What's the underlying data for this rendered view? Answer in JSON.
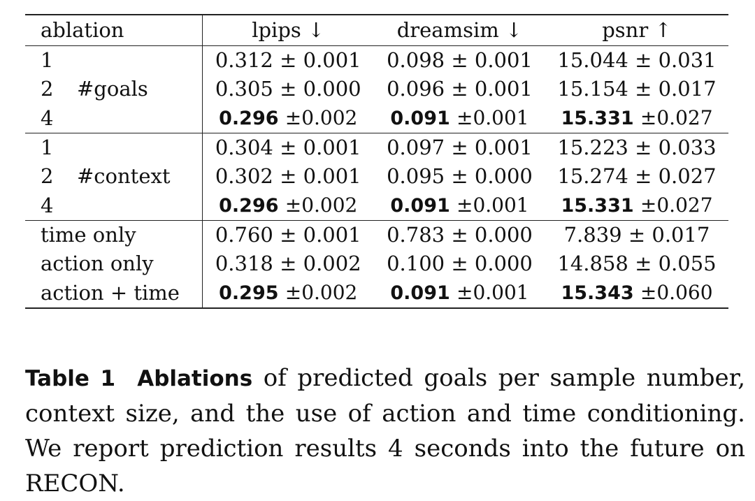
{
  "table": {
    "headers": [
      "ablation",
      "lpips ↓",
      "dreamsim ↓",
      "psnr ↑"
    ],
    "groups": [
      {
        "rows": [
          {
            "index": "1",
            "label": "",
            "lpips": "0.312 ± 0.001",
            "dreamsim": "0.098 ± 0.001",
            "psnr": "15.044 ± 0.031"
          },
          {
            "index": "2",
            "label": "#goals",
            "lpips": "0.305 ± 0.000",
            "dreamsim": "0.096 ± 0.001",
            "psnr": "15.154 ± 0.017"
          },
          {
            "index": "4",
            "label": "",
            "lpips": {
              "best": "0.296",
              "pm": "±0.002"
            },
            "dreamsim": {
              "best": "0.091",
              "pm": "±0.001"
            },
            "psnr": {
              "best": "15.331",
              "pm": "±0.027"
            }
          }
        ]
      },
      {
        "rows": [
          {
            "index": "1",
            "label": "",
            "lpips": "0.304 ± 0.001",
            "dreamsim": "0.097 ± 0.001",
            "psnr": "15.223 ± 0.033"
          },
          {
            "index": "2",
            "label": "#context",
            "lpips": "0.302 ± 0.001",
            "dreamsim": "0.095 ± 0.000",
            "psnr": "15.274 ± 0.027"
          },
          {
            "index": "4",
            "label": "",
            "lpips": {
              "best": "0.296",
              "pm": "±0.002"
            },
            "dreamsim": {
              "best": "0.091",
              "pm": "±0.001"
            },
            "psnr": {
              "best": "15.331",
              "pm": "±0.027"
            }
          }
        ]
      },
      {
        "rows": [
          {
            "label": "time only",
            "lpips": "0.760 ± 0.001",
            "dreamsim": "0.783 ± 0.000",
            "psnr": "7.839 ± 0.017"
          },
          {
            "label": "action only",
            "lpips": "0.318 ± 0.002",
            "dreamsim": "0.100 ± 0.000",
            "psnr": "14.858 ± 0.055"
          },
          {
            "label": "action + time",
            "lpips": {
              "best": "0.295",
              "pm": "±0.002"
            },
            "dreamsim": {
              "best": "0.091",
              "pm": "±0.001"
            },
            "psnr": {
              "best": "15.343",
              "pm": "±0.060"
            }
          }
        ]
      }
    ]
  },
  "caption": {
    "label": "Table 1",
    "bold_lead": "Ablations",
    "text": " of predicted goals per sample number, context size, and the use of action and time conditioning. We report prediction results 4 seconds into the future on RECON."
  }
}
